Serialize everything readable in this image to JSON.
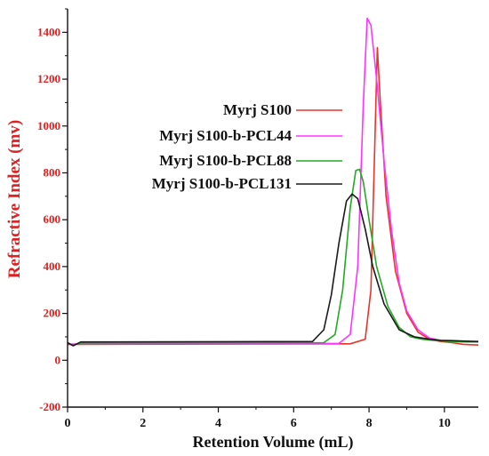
{
  "chart_data": {
    "type": "line",
    "xlabel": "Retention Volume (mL)",
    "ylabel": "Refractive Index (mv)",
    "xlim": [
      0,
      10.9
    ],
    "ylim": [
      -200,
      1500
    ],
    "x_ticks": [
      "0",
      "2",
      "4",
      "6",
      "8",
      "10"
    ],
    "y_ticks": [
      "-200",
      "0",
      "200",
      "400",
      "600",
      "800",
      "1000",
      "1200",
      "1400"
    ],
    "grid": false,
    "legend_position": "top-center",
    "colors": {
      "ylabel": "#e02020",
      "ytick": "#e02020",
      "axis": "#111111"
    },
    "series": [
      {
        "name": "Myrj S100",
        "color": "#e8342a",
        "x": [
          0,
          0.3,
          7.5,
          7.9,
          8.05,
          8.15,
          8.22,
          8.3,
          8.45,
          8.7,
          9.0,
          9.3,
          9.6,
          9.9,
          10.2,
          10.5,
          10.9
        ],
        "y": [
          68,
          68,
          70,
          90,
          300,
          900,
          1335,
          1100,
          700,
          380,
          200,
          120,
          90,
          80,
          75,
          68,
          65
        ]
      },
      {
        "name": "Myrj S100-b-PCL44",
        "color": "#ff33ff",
        "x": [
          0,
          0.3,
          7.2,
          7.5,
          7.7,
          7.85,
          7.95,
          8.05,
          8.2,
          8.4,
          8.6,
          8.8,
          9.0,
          9.3,
          9.6,
          9.9,
          10.2,
          10.5,
          10.9
        ],
        "y": [
          68,
          70,
          72,
          110,
          400,
          1100,
          1460,
          1430,
          1200,
          850,
          550,
          330,
          210,
          130,
          95,
          85,
          80,
          78,
          78
        ]
      },
      {
        "name": "Myrj S100-b-PCL88",
        "color": "#22aa22",
        "x": [
          0,
          0.15,
          0.35,
          6.8,
          7.1,
          7.3,
          7.5,
          7.65,
          7.75,
          7.85,
          8.0,
          8.2,
          8.5,
          8.8,
          9.1,
          9.4,
          9.7,
          10.0,
          10.3,
          10.6,
          10.9
        ],
        "y": [
          72,
          65,
          74,
          75,
          110,
          300,
          650,
          810,
          815,
          760,
          600,
          400,
          230,
          140,
          100,
          90,
          85,
          82,
          80,
          78,
          78
        ]
      },
      {
        "name": "Myrj S100-b-PCL131",
        "color": "#1a1a1a",
        "x": [
          0,
          0.15,
          0.35,
          6.5,
          6.8,
          7.0,
          7.2,
          7.4,
          7.55,
          7.7,
          7.9,
          8.1,
          8.4,
          8.8,
          9.2,
          9.6,
          9.9,
          10.2,
          10.5,
          10.9
        ],
        "y": [
          75,
          62,
          78,
          80,
          130,
          280,
          500,
          680,
          710,
          690,
          560,
          400,
          240,
          130,
          100,
          90,
          85,
          84,
          82,
          80
        ]
      }
    ]
  }
}
